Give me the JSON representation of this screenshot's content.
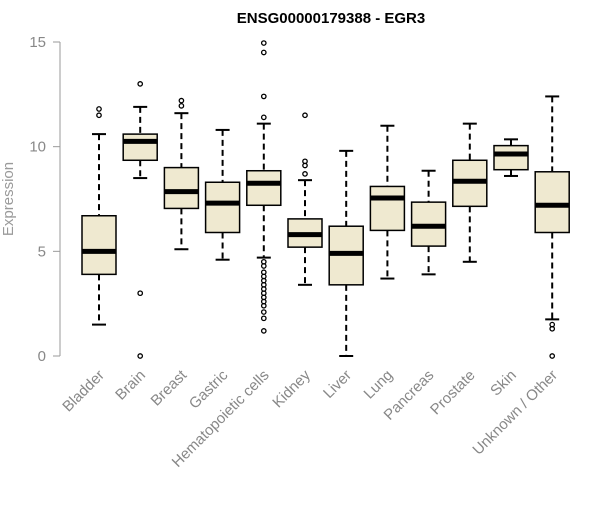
{
  "chart_data": {
    "type": "boxplot",
    "title": "ENSG00000179388 - EGR3",
    "xlabel": "",
    "ylabel": "Expression",
    "ylim": [
      0,
      15
    ],
    "yticks": [
      0,
      5,
      10,
      15
    ],
    "grid": false,
    "colors": {
      "box_fill": "#efe9d0",
      "stroke": "#000000",
      "axis": "#9a9a9a",
      "tick_text": "#888888",
      "title": "#000000"
    },
    "categories": [
      "Bladder",
      "Brain",
      "Breast",
      "Gastric",
      "Hematopoietic cells",
      "Kidney",
      "Liver",
      "Lung",
      "Pancreas",
      "Prostate",
      "Skin",
      "Unknown / Other"
    ],
    "boxes": [
      {
        "name": "Bladder",
        "whisker_low": 1.5,
        "q1": 3.9,
        "median": 5.0,
        "q3": 6.7,
        "whisker_high": 10.6,
        "outliers": [
          11.5,
          11.8
        ]
      },
      {
        "name": "Brain",
        "whisker_low": 8.5,
        "q1": 9.35,
        "median": 10.25,
        "q3": 10.6,
        "whisker_high": 11.9,
        "outliers": [
          13.0,
          3.0,
          0.0
        ]
      },
      {
        "name": "Breast",
        "whisker_low": 5.1,
        "q1": 7.05,
        "median": 7.85,
        "q3": 9.0,
        "whisker_high": 11.6,
        "outliers": [
          11.95,
          12.2
        ]
      },
      {
        "name": "Gastric",
        "whisker_low": 4.6,
        "q1": 5.9,
        "median": 7.3,
        "q3": 8.3,
        "whisker_high": 10.8,
        "outliers": []
      },
      {
        "name": "Hematopoietic cells",
        "whisker_low": 4.7,
        "q1": 7.2,
        "median": 8.25,
        "q3": 8.85,
        "whisker_high": 11.1,
        "outliers": [
          11.4,
          12.4,
          14.5,
          14.95,
          4.5,
          4.3,
          4.0,
          3.8,
          3.6,
          3.4,
          3.2,
          3.0,
          2.8,
          2.6,
          2.4,
          2.1,
          1.8,
          1.2
        ]
      },
      {
        "name": "Kidney",
        "whisker_low": 3.4,
        "q1": 5.2,
        "median": 5.8,
        "q3": 6.55,
        "whisker_high": 8.4,
        "outliers": [
          8.7,
          9.1,
          9.3,
          11.5
        ]
      },
      {
        "name": "Liver",
        "whisker_low": 0.0,
        "q1": 3.4,
        "median": 4.9,
        "q3": 6.2,
        "whisker_high": 9.8,
        "outliers": []
      },
      {
        "name": "Lung",
        "whisker_low": 3.7,
        "q1": 6.0,
        "median": 7.55,
        "q3": 8.1,
        "whisker_high": 11.0,
        "outliers": []
      },
      {
        "name": "Pancreas",
        "whisker_low": 3.9,
        "q1": 5.25,
        "median": 6.2,
        "q3": 7.35,
        "whisker_high": 8.85,
        "outliers": []
      },
      {
        "name": "Prostate",
        "whisker_low": 4.5,
        "q1": 7.15,
        "median": 8.35,
        "q3": 9.35,
        "whisker_high": 11.1,
        "outliers": []
      },
      {
        "name": "Skin",
        "whisker_low": 8.6,
        "q1": 8.9,
        "median": 9.65,
        "q3": 10.05,
        "whisker_high": 10.35,
        "outliers": []
      },
      {
        "name": "Unknown / Other",
        "whisker_low": 1.75,
        "q1": 5.9,
        "median": 7.2,
        "q3": 8.8,
        "whisker_high": 12.4,
        "outliers": [
          1.5,
          1.3,
          0.0
        ]
      }
    ]
  }
}
